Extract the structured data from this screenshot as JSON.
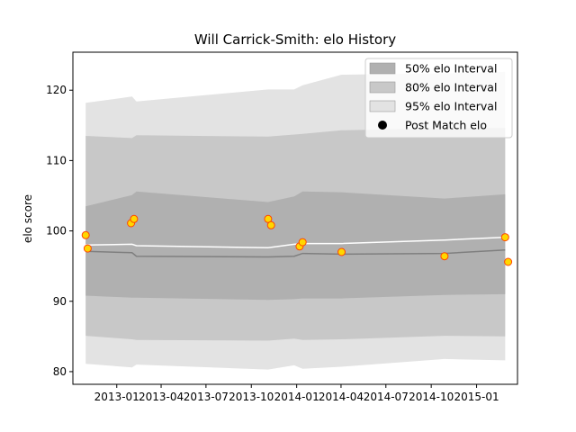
{
  "chart_data": {
    "type": "line",
    "title": "Will Carrick-Smith: elo History",
    "xlabel": "",
    "ylabel": "elo score",
    "xlim": [
      "2012-10-04",
      "2015-03-25"
    ],
    "ylim": [
      78.2,
      125.4
    ],
    "x_ticks": [
      {
        "date": "2013-01-01",
        "label": "2013-01"
      },
      {
        "date": "2013-04-01",
        "label": "2013-04"
      },
      {
        "date": "2013-07-01",
        "label": "2013-07"
      },
      {
        "date": "2013-10-01",
        "label": "2013-10"
      },
      {
        "date": "2014-01-01",
        "label": "2014-01"
      },
      {
        "date": "2014-04-01",
        "label": "2014-04"
      },
      {
        "date": "2014-07-01",
        "label": "2014-07"
      },
      {
        "date": "2014-10-01",
        "label": "2014-10"
      },
      {
        "date": "2015-01-01",
        "label": "2015-01"
      }
    ],
    "y_ticks": [
      80,
      90,
      100,
      110,
      120
    ],
    "legend_position": "upper-right",
    "legend": [
      {
        "label": "50% elo Interval",
        "kind": "band",
        "color": "#b0b0b0"
      },
      {
        "label": "80% elo Interval",
        "kind": "band",
        "color": "#c8c8c8"
      },
      {
        "label": "95% elo Interval",
        "kind": "band",
        "color": "#e3e3e3"
      },
      {
        "label": "Post Match elo",
        "kind": "point",
        "color": "#000000"
      }
    ],
    "band_dates": [
      "2012-10-30",
      "2013-02-01",
      "2013-02-10",
      "2013-11-04",
      "2013-12-27",
      "2014-01-13",
      "2014-04-02",
      "2014-10-28",
      "2015-02-28"
    ],
    "bands": [
      {
        "name": "95% elo Interval",
        "color": "#e3e3e3",
        "upper": [
          118.2,
          119.1,
          118.4,
          120.1,
          120.1,
          120.7,
          122.2,
          122.4,
          122.6
        ],
        "lower": [
          81.1,
          80.6,
          81.0,
          80.3,
          80.9,
          80.4,
          80.7,
          81.8,
          81.6
        ]
      },
      {
        "name": "80% elo Interval",
        "color": "#c8c8c8",
        "upper": [
          113.5,
          113.2,
          113.6,
          113.4,
          113.7,
          113.8,
          114.3,
          114.6,
          114.6
        ],
        "lower": [
          85.1,
          84.6,
          84.5,
          84.4,
          84.7,
          84.5,
          84.6,
          85.1,
          85.0
        ]
      },
      {
        "name": "50% elo Interval",
        "color": "#b0b0b0",
        "upper": [
          103.5,
          105.1,
          105.6,
          104.1,
          104.9,
          105.6,
          105.5,
          104.6,
          105.2
        ],
        "lower": [
          90.8,
          90.5,
          90.5,
          90.2,
          90.3,
          90.4,
          90.4,
          90.9,
          91.0
        ]
      }
    ],
    "median_line": {
      "color": "#7f7f7f",
      "values": [
        97.1,
        96.9,
        96.4,
        96.3,
        96.4,
        96.8,
        96.7,
        96.8,
        97.3
      ]
    },
    "mean_line": {
      "color": "#ffffff",
      "values": [
        98.0,
        98.1,
        97.9,
        97.6,
        98.1,
        98.2,
        98.2,
        98.7,
        99.1
      ]
    },
    "points": {
      "fill": "#ffd700",
      "edge": "#ff4500",
      "x": [
        "2012-10-30",
        "2012-11-03",
        "2013-01-30",
        "2013-02-05",
        "2013-11-04",
        "2013-11-10",
        "2014-01-07",
        "2014-01-13",
        "2014-04-02",
        "2014-10-28",
        "2015-02-28",
        "2015-03-06"
      ],
      "y": [
        99.4,
        97.5,
        101.1,
        101.7,
        101.7,
        100.8,
        97.8,
        98.4,
        97.0,
        96.4,
        99.1,
        95.6
      ]
    }
  }
}
